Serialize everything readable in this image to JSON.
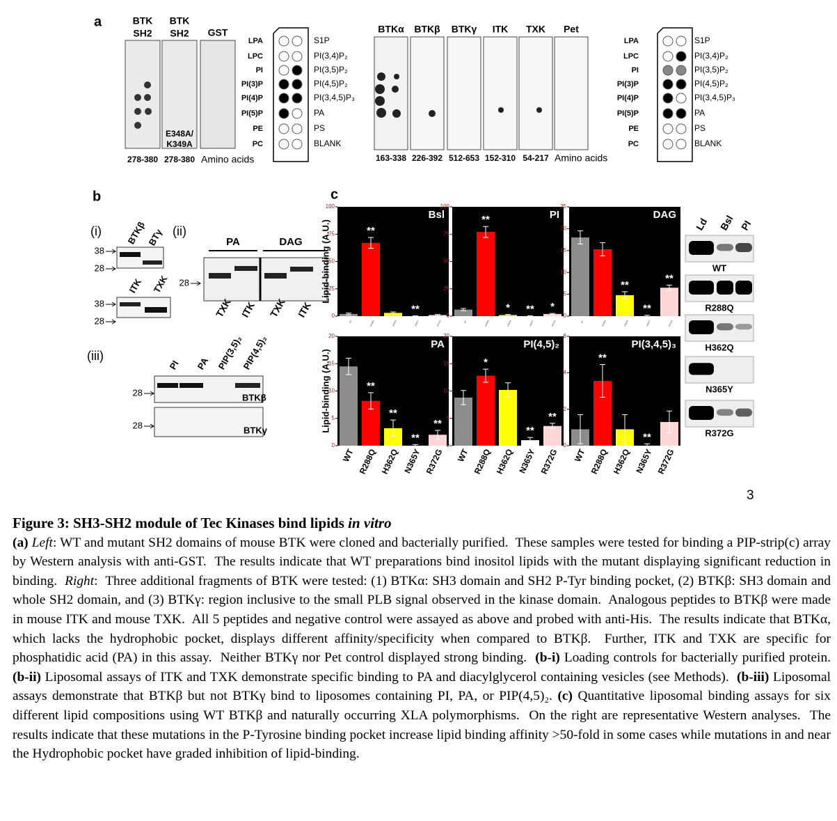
{
  "panel_a": {
    "label": "a",
    "left_strips": [
      {
        "header": [
          "BTK",
          "SH2"
        ],
        "range": "278-380"
      },
      {
        "header": [
          "BTK",
          "SH2"
        ],
        "range": "278-380",
        "mutation": [
          "E348A/",
          "K349A"
        ]
      },
      {
        "header": [
          "GST"
        ]
      }
    ],
    "amino_acids": "Amino acids",
    "lipids_left": [
      "LPA",
      "LPC",
      "PI",
      "PI(3)P",
      "PI(4)P",
      "PI(5)P",
      "PE",
      "PC"
    ],
    "lipids_right": [
      "S1P",
      "PI(3,4)P₂",
      "PI(3,5)P₂",
      "PI(4,5)P₂",
      "PI(3,4,5)P₃",
      "PA",
      "PS",
      "BLANK"
    ],
    "right_strips": [
      {
        "header": "BTKα",
        "range": "163-338"
      },
      {
        "header": "BTKβ",
        "range": "226-392"
      },
      {
        "header": "BTKγ",
        "range": "512-653"
      },
      {
        "header": "ITK",
        "range": "152-310"
      },
      {
        "header": "TXK",
        "range": "54-217"
      },
      {
        "header": "Pet"
      }
    ]
  },
  "panel_b": {
    "label": "b",
    "i": {
      "label": "(i)",
      "lanes_top": [
        "BTKβ",
        "BTγ"
      ],
      "lanes_bottom": [
        "ITK",
        "TXK"
      ],
      "markers": [
        "38",
        "28"
      ]
    },
    "ii": {
      "label": "(ii)",
      "groups": [
        "PA",
        "DAG"
      ],
      "lanes": [
        "TXK",
        "ITK",
        "TXK",
        "ITK"
      ],
      "marker": "28"
    },
    "iii": {
      "label": "(iii)",
      "lanes": [
        "PI",
        "PA",
        "PIP(3,5)₂",
        "PIP(4,5)₂"
      ],
      "blots": [
        "BTKβ",
        "BTKγ"
      ],
      "marker": "28"
    }
  },
  "panel_c": {
    "label": "c",
    "ylabel": "Lipid-binding (A.U.)",
    "blot_lanes": [
      "Ld",
      "Bsl",
      "PI"
    ],
    "blots": [
      "WT",
      "R288Q",
      "H362Q",
      "N365Y",
      "R372G"
    ]
  },
  "chart_data": [
    {
      "type": "bar",
      "title": "Bsl",
      "categories": [
        "WT",
        "R288Q",
        "H362Q",
        "N365Y",
        "R372G"
      ],
      "values": [
        2,
        67,
        3,
        0,
        1
      ],
      "errors": [
        0.8,
        5,
        0.8,
        0.3,
        0.5
      ],
      "colors": [
        "#8c8c8c",
        "#ff0000",
        "#ffff00",
        "#ffffff",
        "#ffd6d6"
      ],
      "significance": [
        null,
        "**",
        null,
        "**",
        null
      ],
      "ylim": [
        0,
        100
      ],
      "yticks": [
        0,
        25,
        50,
        75,
        100
      ]
    },
    {
      "type": "bar",
      "title": "PI",
      "categories": [
        "WT",
        "R288Q",
        "H362Q",
        "N365Y",
        "R372G"
      ],
      "values": [
        6,
        77,
        1,
        0,
        2
      ],
      "errors": [
        1,
        5,
        0.5,
        0.3,
        0.5
      ],
      "colors": [
        "#8c8c8c",
        "#ff0000",
        "#ffff00",
        "#ffffff",
        "#ffd6d6"
      ],
      "significance": [
        null,
        "**",
        "*",
        "**",
        "*"
      ],
      "ylim": [
        0,
        100
      ],
      "yticks": [
        0,
        25,
        50,
        75,
        100
      ]
    },
    {
      "type": "bar",
      "title": "DAG",
      "categories": [
        "WT",
        "R288Q",
        "H362Q",
        "N365Y",
        "R372G"
      ],
      "values": [
        18,
        15.3,
        4.8,
        0,
        6.5
      ],
      "errors": [
        1.5,
        1.5,
        0.8,
        0.2,
        0.6
      ],
      "colors": [
        "#8c8c8c",
        "#ff0000",
        "#ffff00",
        "#ffffff",
        "#ffd6d6"
      ],
      "significance": [
        null,
        null,
        "**",
        "**",
        "**"
      ],
      "ylim": [
        0,
        25
      ],
      "yticks": [
        0,
        5,
        10,
        15,
        20,
        25
      ]
    },
    {
      "type": "bar",
      "title": "PA",
      "categories": [
        "WT",
        "R288Q",
        "H362Q",
        "N365Y",
        "R372G"
      ],
      "values": [
        14.5,
        8.2,
        3.2,
        0,
        2
      ],
      "errors": [
        1.5,
        1.5,
        1.5,
        0.2,
        0.8
      ],
      "colors": [
        "#8c8c8c",
        "#ff0000",
        "#ffff00",
        "#ffffff",
        "#ffd6d6"
      ],
      "significance": [
        null,
        "**",
        "**",
        "**",
        "**"
      ],
      "ylim": [
        0,
        20
      ],
      "yticks": [
        0,
        5,
        10,
        15,
        20
      ]
    },
    {
      "type": "bar",
      "title": "PI(4,5)₂",
      "categories": [
        "WT",
        "R288Q",
        "H362Q",
        "N365Y",
        "R372G"
      ],
      "values": [
        8.8,
        12.8,
        10.2,
        1,
        3.6
      ],
      "errors": [
        1.3,
        1.2,
        1.3,
        0.5,
        0.5
      ],
      "colors": [
        "#8c8c8c",
        "#ff0000",
        "#ffff00",
        "#ffffff",
        "#ffd6d6"
      ],
      "significance": [
        null,
        "*",
        null,
        "**",
        "**"
      ],
      "ylim": [
        0,
        20
      ],
      "yticks": [
        0,
        5,
        10,
        15,
        20
      ]
    },
    {
      "type": "bar",
      "title": "PI(3,4,5)₃",
      "categories": [
        "WT",
        "R288Q",
        "H362Q",
        "N365Y",
        "R372G"
      ],
      "values": [
        0.9,
        3.55,
        0.9,
        0,
        1.3
      ],
      "errors": [
        0.8,
        0.9,
        0.8,
        0.1,
        0.6
      ],
      "colors": [
        "#8c8c8c",
        "#ff0000",
        "#ffff00",
        "#ffffff",
        "#ffd6d6"
      ],
      "significance": [
        null,
        "**",
        null,
        "**",
        null
      ],
      "ylim": [
        0,
        6
      ],
      "yticks": [
        0,
        2,
        4,
        6
      ]
    }
  ],
  "page_number": "3",
  "caption": {
    "title": [
      {
        "text": "Figure 3: SH3-SH2 module of Tec Kinases bind lipids ",
        "style": "bold"
      },
      {
        "text": "in vitro",
        "style": "bold-italic"
      }
    ],
    "runs": [
      {
        "text": "(a)",
        "style": "bold"
      },
      {
        "text": " ",
        "style": "normal"
      },
      {
        "text": "Left",
        "style": "italic"
      },
      {
        "text": ": WT and mutant SH2 domains of mouse BTK were cloned and bacterially purified.  These samples were tested for binding a PIP-strip(c) array by Western analysis with anti-GST.  The results indicate that WT preparations bind inositol lipids with the mutant displaying significant reduction in binding.  ",
        "style": "normal"
      },
      {
        "text": "Right",
        "style": "italic"
      },
      {
        "text": ":  Three additional fragments of BTK were tested: (1) BTKα: SH3 domain and SH2 P-Tyr binding pocket, (2) BTKβ: SH3 domain and whole SH2 domain, and (3) BTKγ: region inclusive to the small PLB signal observed in the kinase domain.  Analogous peptides to BTKβ were made in mouse ITK and mouse TXK.  All 5 peptides and negative control were assayed as above and probed with anti-His.  The results indicate that BTKα, which lacks the hydrophobic pocket, displays different affinity/specificity when compared to BTKβ.  Further, ITK and TXK are specific for phosphatidic acid (PA) in this assay.  Neither BTKγ nor Pet control displayed strong binding.  ",
        "style": "normal"
      },
      {
        "text": "(b-i)",
        "style": "bold"
      },
      {
        "text": " Loading controls for bacterially purified protein.  ",
        "style": "normal"
      },
      {
        "text": "(b-ii)",
        "style": "bold"
      },
      {
        "text": " Liposomal assays of ITK and TXK demonstrate specific binding to PA and diacylglycerol containing vesicles (see Methods).  ",
        "style": "normal"
      },
      {
        "text": "(b-iii)",
        "style": "bold"
      },
      {
        "text": " Liposomal assays demonstrate that BTKβ but not BTKγ bind to liposomes containing PI, PA, or PIP(4,5)₂. ",
        "style": "normal"
      },
      {
        "text": "(c)",
        "style": "bold"
      },
      {
        "text": " Quantitative liposomal binding assays for six different lipid compositions using WT BTKβ and naturally occurring XLA polymorphisms.  On the right are representative Western analyses.  The results indicate that these mutations in the P-Tyrosine binding pocket increase lipid binding affinity >50-fold in some cases while mutations in and near the Hydrophobic pocket have graded inhibition of lipid-binding.",
        "style": "normal"
      }
    ]
  }
}
